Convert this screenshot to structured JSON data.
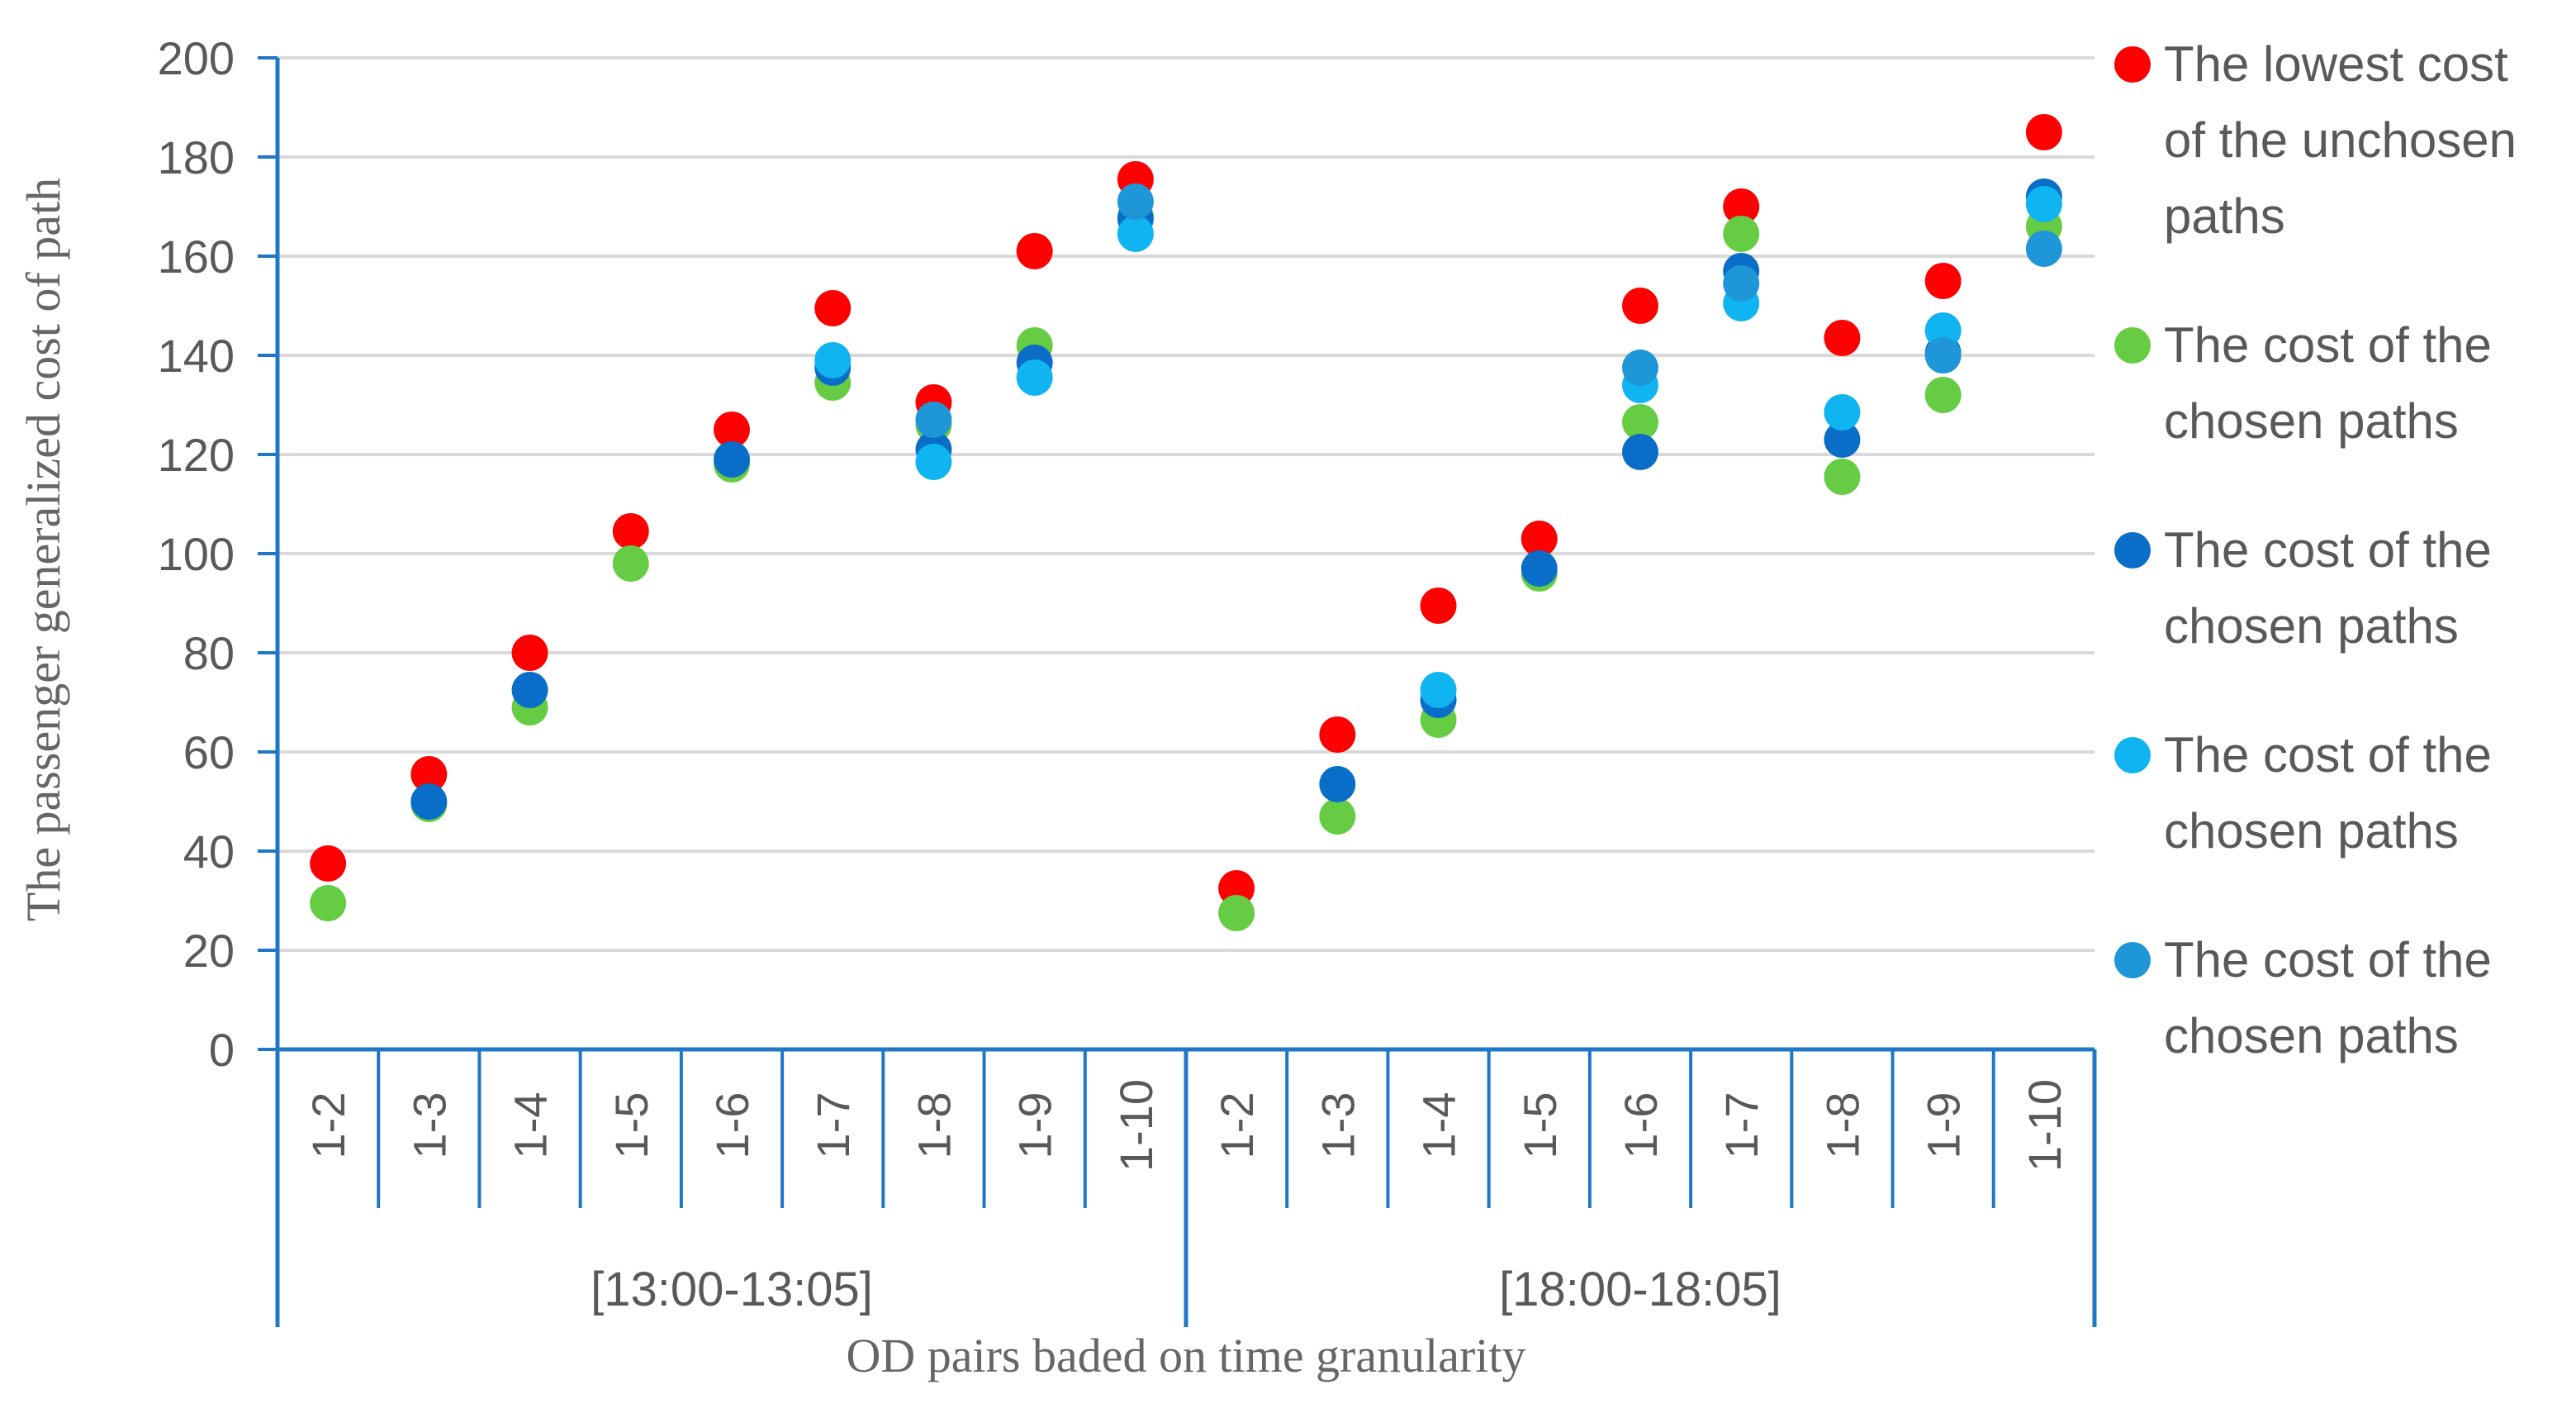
{
  "chart_data": {
    "type": "scatter",
    "xlabel": "OD pairs baded on time granularity",
    "ylabel": "The passenger generalized cost of path",
    "ylim": [
      0,
      200
    ],
    "yticks": [
      0,
      20,
      40,
      60,
      80,
      100,
      120,
      140,
      160,
      180,
      200
    ],
    "grid": true,
    "legend_position": "right",
    "categories": [
      "1-2",
      "1-3",
      "1-4",
      "1-5",
      "1-6",
      "1-7",
      "1-8",
      "1-9",
      "1-10",
      "1-2",
      "1-3",
      "1-4",
      "1-5",
      "1-6",
      "1-7",
      "1-8",
      "1-9",
      "1-10"
    ],
    "groups": [
      {
        "label": "[13:00-13:05]",
        "count": 9
      },
      {
        "label": "[18:00-18:05]",
        "count": 9
      }
    ],
    "series": [
      {
        "name": "The lowest cost of the unchosen paths",
        "color": "#FF0000",
        "values": [
          37.5,
          55.5,
          80,
          104.5,
          125,
          149.5,
          130.5,
          161,
          175.5,
          32.5,
          63.5,
          89.5,
          103,
          150,
          170,
          143.5,
          155,
          185
        ]
      },
      {
        "name": "The cost of the chosen paths",
        "color": "#66CC44",
        "values": [
          29.5,
          49.5,
          69,
          98,
          118,
          134.5,
          126,
          142,
          168,
          27.5,
          47,
          66.5,
          96,
          126.5,
          164.5,
          115.5,
          132,
          166
        ]
      },
      {
        "name": "The cost of the chosen paths",
        "color": "#0A6EC8",
        "values": [
          null,
          50,
          72.5,
          null,
          119,
          137.5,
          121,
          138.5,
          167.5,
          null,
          53.5,
          70.5,
          97,
          120.5,
          157,
          123,
          140.5,
          172
        ]
      },
      {
        "name": "The cost of the chosen paths",
        "color": "#10B4F0",
        "values": [
          null,
          null,
          null,
          null,
          null,
          139,
          118.5,
          135.5,
          164.5,
          null,
          null,
          72.5,
          null,
          134,
          150.5,
          128.5,
          145,
          170.5
        ]
      },
      {
        "name": "The cost of the chosen paths",
        "color": "#1E96D7",
        "values": [
          null,
          null,
          null,
          null,
          null,
          null,
          127,
          null,
          171,
          null,
          null,
          null,
          null,
          137.5,
          154.5,
          null,
          140,
          161.5
        ]
      }
    ]
  }
}
